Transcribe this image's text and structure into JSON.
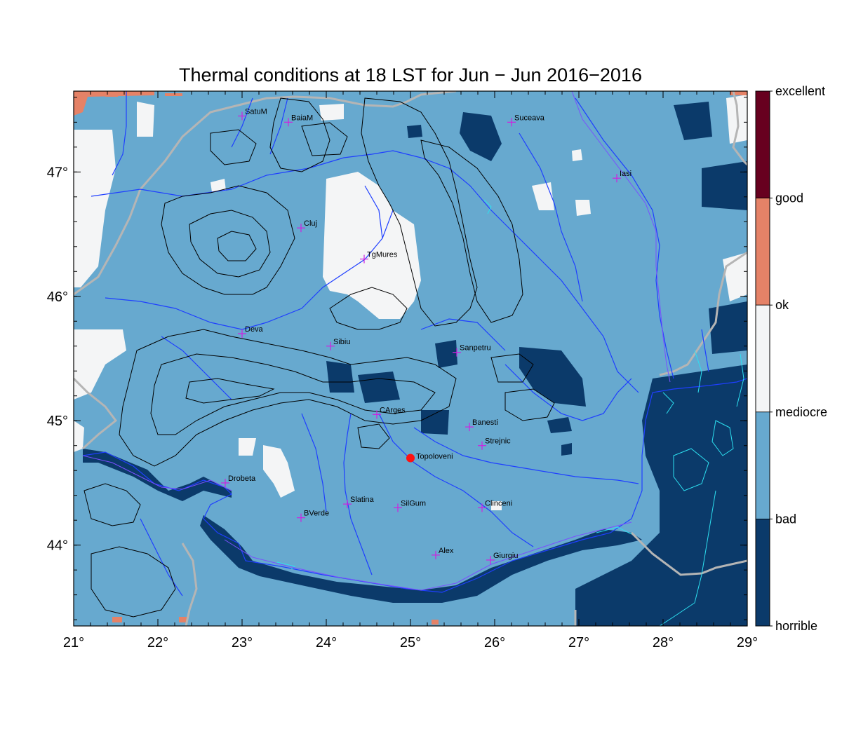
{
  "title": "Thermal conditions at 18 LST for Jun − Jun  2016−2016",
  "x_ticks": [
    "21°",
    "22°",
    "23°",
    "24°",
    "25°",
    "26°",
    "27°",
    "28°",
    "29°"
  ],
  "y_ticks": [
    "44°",
    "45°",
    "46°",
    "47°"
  ],
  "legend": {
    "labels": [
      "excellent",
      "good",
      "ok",
      "mediocre",
      "bad",
      "horrible"
    ],
    "colors": [
      "#67001f",
      "#e58267",
      "#f4f5f6",
      "#67a9cf",
      "#0b3a6a"
    ]
  },
  "cities": [
    {
      "name": "SatuM",
      "lon": 23.0,
      "lat": 47.45
    },
    {
      "name": "BaiaM",
      "lon": 23.55,
      "lat": 47.4
    },
    {
      "name": "Suceava",
      "lon": 26.2,
      "lat": 47.4
    },
    {
      "name": "Iasi",
      "lon": 27.45,
      "lat": 46.95
    },
    {
      "name": "Cluj",
      "lon": 23.7,
      "lat": 46.55
    },
    {
      "name": "TgMures",
      "lon": 24.45,
      "lat": 46.3
    },
    {
      "name": "Deva",
      "lon": 23.0,
      "lat": 45.7
    },
    {
      "name": "Sibiu",
      "lon": 24.05,
      "lat": 45.6
    },
    {
      "name": "Sanpetru",
      "lon": 25.55,
      "lat": 45.55
    },
    {
      "name": "CArges",
      "lon": 24.6,
      "lat": 45.05
    },
    {
      "name": "Banesti",
      "lon": 25.7,
      "lat": 44.95
    },
    {
      "name": "Strejnic",
      "lon": 25.85,
      "lat": 44.8
    },
    {
      "name": "Drobeta",
      "lon": 22.8,
      "lat": 44.5
    },
    {
      "name": "Slatina",
      "lon": 24.25,
      "lat": 44.33
    },
    {
      "name": "SilGum",
      "lon": 24.85,
      "lat": 44.3
    },
    {
      "name": "Clinceni",
      "lon": 25.85,
      "lat": 44.3
    },
    {
      "name": "BVerde",
      "lon": 23.7,
      "lat": 44.22
    },
    {
      "name": "Alex",
      "lon": 25.3,
      "lat": 43.92
    },
    {
      "name": "Giurgiu",
      "lon": 25.95,
      "lat": 43.88
    }
  ],
  "highlight_site": {
    "name": "Topoloveni",
    "lon": 25.0,
    "lat": 44.7
  }
}
